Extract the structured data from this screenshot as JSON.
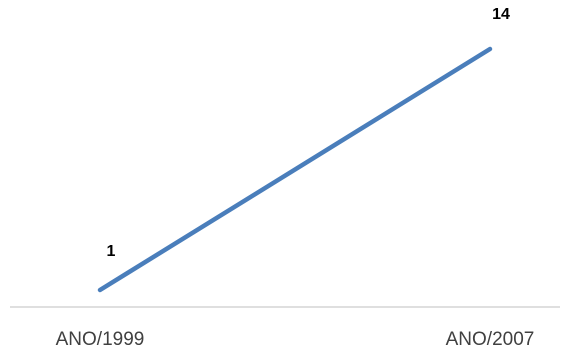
{
  "chart_data": {
    "type": "line",
    "categories": [
      "ANO/1999",
      "ANO/2007"
    ],
    "series": [
      {
        "values": [
          1,
          14
        ],
        "color": "#4a7ebb"
      }
    ],
    "data_labels": [
      "1",
      "14"
    ],
    "title": "",
    "xlabel": "",
    "ylabel": "",
    "ylim": [
      0,
      15
    ],
    "grid": false,
    "legend": "none",
    "axis_color": "#bfbfbf"
  }
}
